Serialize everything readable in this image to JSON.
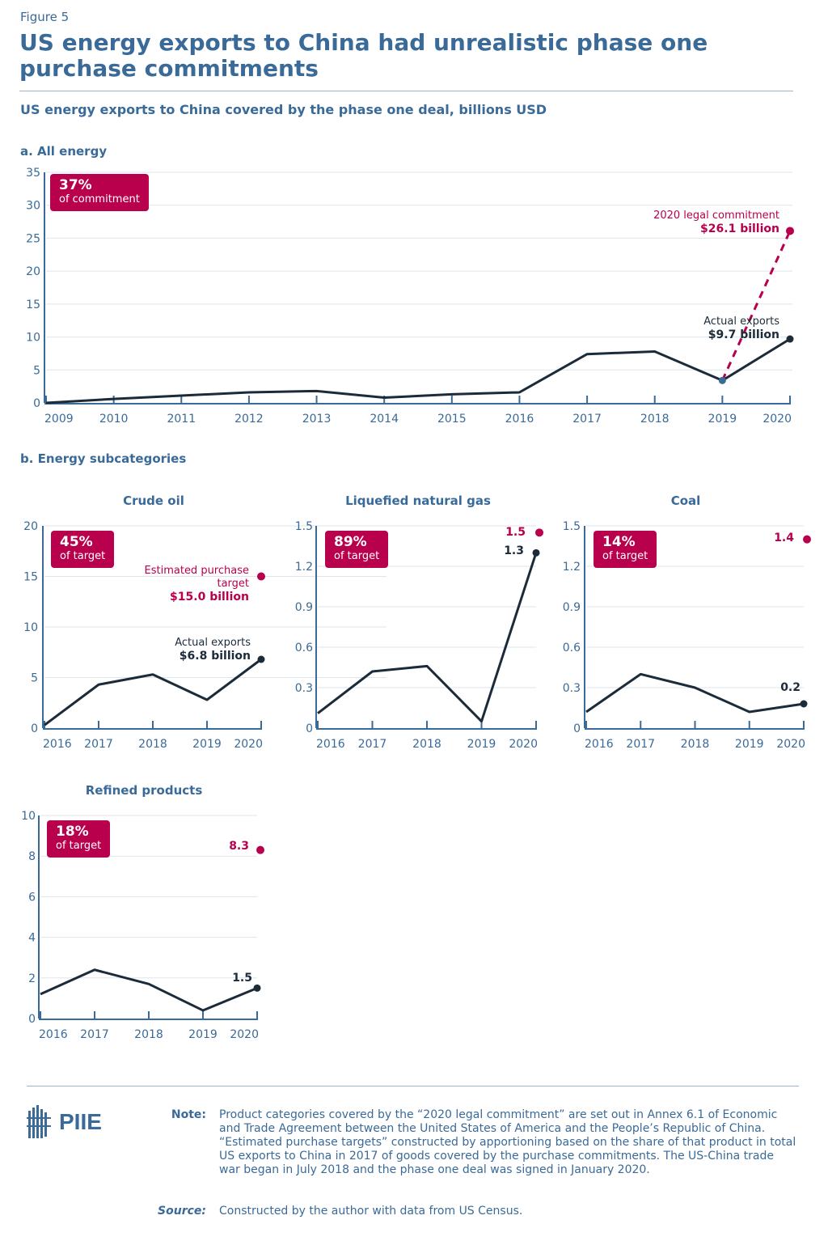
{
  "figure_label": "Figure 5",
  "title": "US energy exports to China had unrealistic phase one purchase commitments",
  "subtitle": "US energy exports to China covered by the phase one deal, billions USD",
  "colors": {
    "accent": "#b8004d",
    "line": "#1c2b3a",
    "axis": "#3a6a98",
    "grid": "#dde5ee"
  },
  "chart_data": [
    {
      "type": "line",
      "section": "a. All energy",
      "title": "",
      "x": [
        2009,
        2010,
        2011,
        2012,
        2013,
        2014,
        2015,
        2016,
        2017,
        2018,
        2019,
        2020
      ],
      "values": [
        0,
        0.6,
        1.1,
        1.6,
        1.8,
        0.8,
        1.3,
        1.6,
        7.4,
        7.8,
        3.4,
        9.7
      ],
      "target": {
        "x": 2020,
        "value": 26.1,
        "from_x": 2019,
        "label": "2020 legal commitment",
        "value_label": "$26.1 billion"
      },
      "actual_label": "Actual exports",
      "actual_value_label": "$9.7 billion",
      "badge": {
        "pct": "37%",
        "text": "of commitment"
      },
      "yticks": [
        "0",
        "5",
        "10",
        "15",
        "20",
        "25",
        "30",
        "35"
      ],
      "ylim": [
        0,
        35
      ],
      "grid": true
    },
    {
      "type": "line",
      "section": "b. Energy subcategories",
      "title": "Crude oil",
      "x": [
        2016,
        2017,
        2018,
        2019,
        2020
      ],
      "values": [
        0.3,
        4.3,
        5.3,
        2.8,
        6.8
      ],
      "target": {
        "x": 2020,
        "value": 15.0,
        "label": "Estimated purchase target",
        "value_label": "$15.0 billion"
      },
      "actual_label": "Actual exports",
      "actual_value_label": "$6.8 billion",
      "badge": {
        "pct": "45%",
        "text": "of target"
      },
      "yticks": [
        "0",
        "5",
        "10",
        "15",
        "20"
      ],
      "ylim": [
        0,
        20
      ],
      "grid": true
    },
    {
      "type": "line",
      "title": "Liquefied natural gas",
      "x": [
        2016,
        2017,
        2018,
        2019,
        2020
      ],
      "values": [
        0.11,
        0.42,
        0.46,
        0.05,
        1.3
      ],
      "target": {
        "x": 2020,
        "value": 1.45,
        "value_label": "1.5"
      },
      "actual_value_label": "1.3",
      "badge": {
        "pct": "89%",
        "text": "of target"
      },
      "yticks": [
        "0",
        "0.3",
        "0.6",
        "0.9",
        "1.2",
        "1.5"
      ],
      "ylim": [
        0,
        1.5
      ],
      "grid": true
    },
    {
      "type": "line",
      "title": "Coal",
      "x": [
        2016,
        2017,
        2018,
        2019,
        2020
      ],
      "values": [
        0.12,
        0.4,
        0.3,
        0.12,
        0.18
      ],
      "target": {
        "x": 2020,
        "value": 1.4,
        "value_label": "1.4"
      },
      "actual_value_label": "0.2",
      "badge": {
        "pct": "14%",
        "text": "of target"
      },
      "yticks": [
        "0",
        "0.3",
        "0.6",
        "0.9",
        "1.2",
        "1.5"
      ],
      "ylim": [
        0,
        1.5
      ],
      "grid": true
    },
    {
      "type": "line",
      "title": "Refined products",
      "x": [
        2016,
        2017,
        2018,
        2019,
        2020
      ],
      "values": [
        1.2,
        2.4,
        1.7,
        0.4,
        1.5
      ],
      "target": {
        "x": 2020,
        "value": 8.3,
        "value_label": "8.3"
      },
      "actual_value_label": "1.5",
      "badge": {
        "pct": "18%",
        "text": "of target"
      },
      "yticks": [
        "0",
        "2",
        "4",
        "6",
        "8",
        "10"
      ],
      "ylim": [
        0,
        10
      ],
      "grid": true
    }
  ],
  "logo_text": "PIIE",
  "note_label": "Note:",
  "note": "Product categories covered by the “2020 legal commitment” are set out in Annex 6.1 of Economic and Trade Agreement between the United States of America and the People’s Republic of China. “Estimated purchase targets” constructed by apportioning based on the share of that product in total US exports to China in 2017 of goods covered by the purchase commitments. The US-China trade war began in July 2018 and the phase one deal was signed in January 2020.",
  "source_label": "Source:",
  "source": "Constructed by the author with data from US Census."
}
